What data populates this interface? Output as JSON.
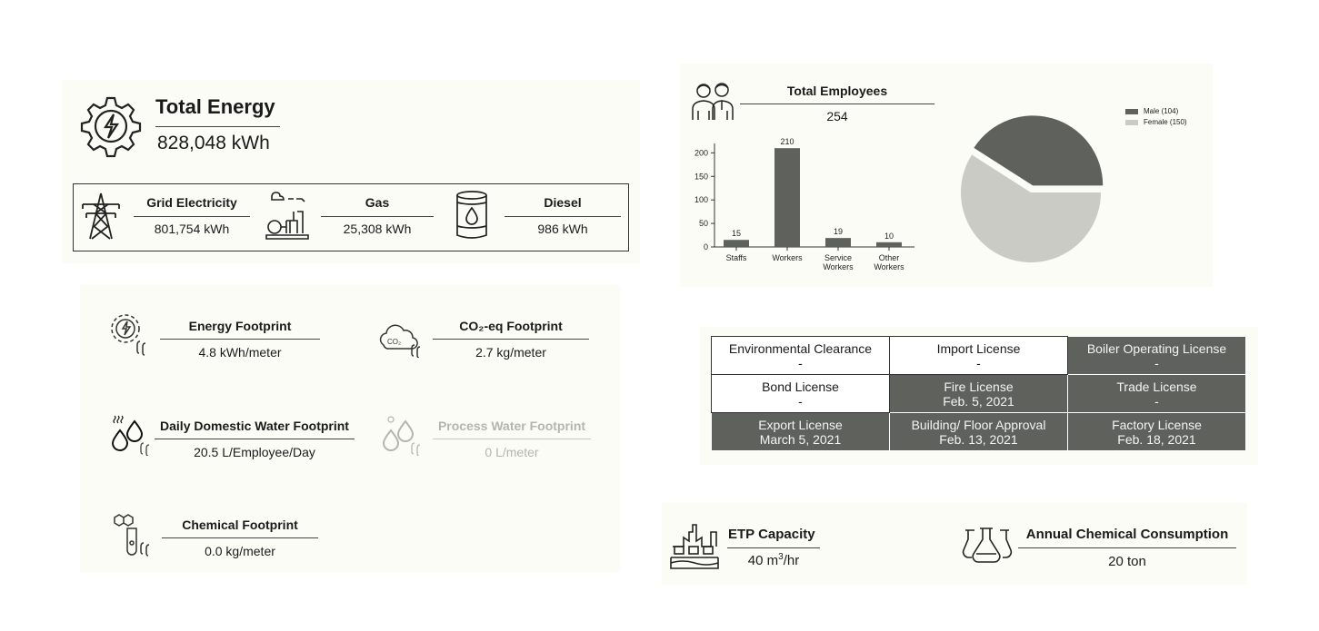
{
  "energy": {
    "title": "Total Energy",
    "total": "828,048 kWh",
    "sources": [
      {
        "label": "Grid Electricity",
        "value": "801,754 kWh",
        "icon": "power-tower-icon"
      },
      {
        "label": "Gas",
        "value": "25,308 kWh",
        "icon": "gas-plant-icon"
      },
      {
        "label": "Diesel",
        "value": "986 kWh",
        "icon": "oil-barrel-icon"
      }
    ]
  },
  "footprints": {
    "energy": {
      "label": "Energy Footprint",
      "value": "4.8 kWh/meter"
    },
    "co2": {
      "label": "CO₂-eq Footprint",
      "value": "2.7 kg/meter",
      "icon_text": "CO₂"
    },
    "domestic_water": {
      "label": "Daily Domestic Water Footprint",
      "value": "20.5 L/Employee/Day"
    },
    "process_water": {
      "label": "Process Water Footprint",
      "value": "0 L/meter"
    },
    "chemical": {
      "label": "Chemical Footprint",
      "value": "0.0 kg/meter"
    }
  },
  "employees": {
    "title": "Total Employees",
    "total": "254"
  },
  "chart_data": [
    {
      "type": "bar",
      "categories": [
        "Staffs",
        "Workers",
        "Service Workers",
        "Other Workers"
      ],
      "category_lines": [
        [
          "Staffs"
        ],
        [
          "Workers"
        ],
        [
          "Service",
          "Workers"
        ],
        [
          "Other",
          "Workers"
        ]
      ],
      "values": [
        15,
        210,
        19,
        10
      ],
      "ylim": [
        0,
        220
      ],
      "yticks": [
        0,
        50,
        100,
        150,
        200
      ],
      "color": "#5f615c"
    },
    {
      "type": "pie",
      "labels": [
        "Male (104)",
        "Female (150)"
      ],
      "values": [
        104,
        150
      ],
      "colors": [
        "#5f615c",
        "#cbcbc6"
      ],
      "legend": "top-right"
    }
  ],
  "licenses": [
    [
      {
        "name": "Environmental Clearance",
        "date": "-",
        "style": "light"
      },
      {
        "name": "Import License",
        "date": "-",
        "style": "light"
      },
      {
        "name": "Boiler Operating License",
        "date": "-",
        "style": "dark"
      }
    ],
    [
      {
        "name": "Bond License",
        "date": "-",
        "style": "light"
      },
      {
        "name": "Fire License",
        "date": "Feb. 5, 2021",
        "style": "dark"
      },
      {
        "name": "Trade License",
        "date": "-",
        "style": "dark"
      }
    ],
    [
      {
        "name": "Export License",
        "date": "March 5, 2021",
        "style": "dark"
      },
      {
        "name": "Building/ Floor Approval",
        "date": "Feb. 13, 2021",
        "style": "dark"
      },
      {
        "name": "Factory License",
        "date": "Feb. 18, 2021",
        "style": "dark"
      }
    ]
  ],
  "etp": {
    "label": "ETP Capacity",
    "value": "40 m",
    "unit_sup": "3",
    "unit_rest": "/hr"
  },
  "chemical_consumption": {
    "label": "Annual Chemical Consumption",
    "value": "20 ton"
  }
}
